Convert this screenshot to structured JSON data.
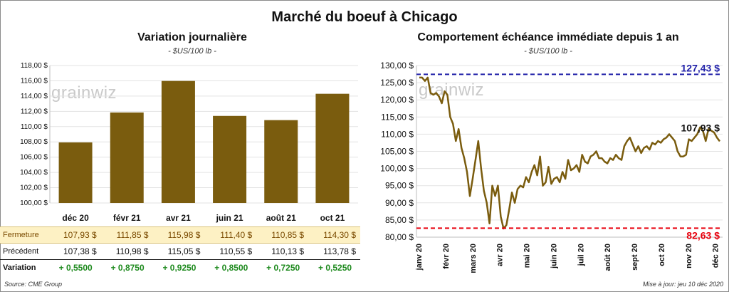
{
  "title": "Marché du boeuf à Chicago",
  "left_chart": {
    "title": "Variation  journalière",
    "subtitle": "- $US/100 lb -"
  },
  "right_chart": {
    "title": "Comportement  échéance immédiate depuis 1 an",
    "subtitle": "- $US/100 lb -"
  },
  "watermark": "grainwiz",
  "colors": {
    "bar": "#7a5c0e",
    "line": "#7a5c0e",
    "high": "#1f1fa8",
    "low": "#e8000d"
  },
  "table": {
    "rows": [
      {
        "label": "Fermeture",
        "values": [
          "107,93  $",
          "111,85  $",
          "115,98  $",
          "111,40  $",
          "110,85  $",
          "114,30  $"
        ]
      },
      {
        "label": "Précédent",
        "values": [
          "107,38  $",
          "110,98  $",
          "115,05  $",
          "110,55  $",
          "110,13  $",
          "113,78  $"
        ]
      },
      {
        "label": "Variation",
        "values": [
          "+ 0,5500",
          "+ 0,8750",
          "+ 0,9250",
          "+ 0,8500",
          "+ 0,7250",
          "+ 0,5250"
        ]
      }
    ]
  },
  "source": "Source: CME Group",
  "updated": "Mise à jour: jeu 10 déc 2020",
  "chart_data": [
    {
      "type": "bar",
      "categories": [
        "déc 20",
        "févr 21",
        "avr 21",
        "juin 21",
        "août 21",
        "oct 21"
      ],
      "values": [
        107.93,
        111.85,
        115.98,
        111.4,
        110.85,
        114.3
      ],
      "ylim": [
        100,
        118
      ],
      "yticks": [
        "100,00 $",
        "102,00 $",
        "104,00 $",
        "106,00 $",
        "108,00 $",
        "110,00 $",
        "112,00 $",
        "114,00 $",
        "116,00 $",
        "118,00 $"
      ]
    },
    {
      "type": "line",
      "x_labels": [
        "janv 20",
        "févr 20",
        "mars 20",
        "avr 20",
        "mai 20",
        "juin 20",
        "juil 20",
        "août 20",
        "sept 20",
        "oct 20",
        "nov 20",
        "déc 20"
      ],
      "ylim": [
        80,
        130
      ],
      "yticks": [
        "80,00 $",
        "85,00 $",
        "90,00 $",
        "95,00 $",
        "100,00 $",
        "105,00 $",
        "110,00 $",
        "115,00 $",
        "120,00 $",
        "125,00 $",
        "130,00 $"
      ],
      "series": [
        {
          "values": [
            126.5,
            126.5,
            125.5,
            126.5,
            122,
            121.5,
            122,
            121,
            119,
            122.5,
            121.5,
            115,
            113,
            108,
            111.5,
            106,
            103,
            99,
            92,
            97,
            102.5,
            108,
            100,
            93.5,
            90,
            84,
            95,
            92,
            95,
            86,
            82.5,
            83.5,
            88,
            93,
            90,
            94,
            95,
            94.5,
            97.5,
            96,
            99,
            101,
            98,
            103.5,
            95,
            96,
            100.5,
            95.5,
            97,
            97.5,
            96,
            99,
            97,
            102.5,
            99.5,
            100,
            101,
            99,
            104,
            102,
            101.5,
            103.5,
            104,
            105,
            103,
            103,
            102,
            101.5,
            103,
            102.5,
            104,
            103,
            102.5,
            106.5,
            108,
            109,
            107,
            105,
            106.5,
            104.5,
            106,
            106.5,
            105.5,
            107.5,
            107,
            108,
            107.5,
            108.5,
            109,
            110,
            109,
            108,
            105,
            103.5,
            103.5,
            104,
            108.5,
            108,
            109,
            110,
            112,
            111,
            108,
            111.5,
            111,
            110.5,
            109,
            107.93
          ]
        }
      ],
      "annotations": [
        {
          "label": "127,43 $",
          "value": 127.43
        },
        {
          "label": "82,63 $",
          "value": 82.63
        },
        {
          "label": "107,93 $",
          "value": 107.93
        }
      ]
    }
  ]
}
